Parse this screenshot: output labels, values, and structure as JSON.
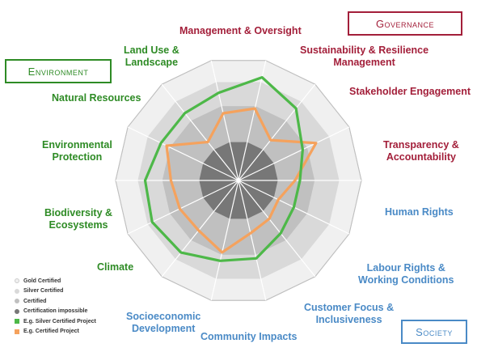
{
  "chart_data": {
    "type": "radar",
    "axes": [
      "Management & Oversight",
      "Sustainability & Resilience Management",
      "Stakeholder Engagement",
      "Transparency & Accountability",
      "Human Rights",
      "Labour Rights & Working Conditions",
      "Customer Focus & Inclusiveness",
      "Community Impacts",
      "Socioeconomic Development",
      "Climate",
      "Biodiversity & Ecosystems",
      "Environmental Protection",
      "Natural Resources",
      "Land Use & Landscape"
    ],
    "bands": [
      {
        "name": "Gold Certified",
        "color": "#f0f0f0",
        "radius": 1.0
      },
      {
        "name": "Silver Certified",
        "color": "#d9d9d9",
        "radius": 0.82
      },
      {
        "name": "Certified",
        "color": "#c0c0c0",
        "radius": 0.62
      },
      {
        "name": "Certification impossible",
        "color": "#777777",
        "radius": 0.32
      }
    ],
    "series": [
      {
        "name": "E.g. Silver Certified Project",
        "color": "#4db848",
        "values": [
          0.86,
          0.75,
          0.58,
          0.5,
          0.5,
          0.55,
          0.65,
          0.67,
          0.75,
          0.78,
          0.76,
          0.7,
          0.7,
          0.73
        ]
      },
      {
        "name": "E.g. Certified Project",
        "color": "#f5a25d",
        "values": [
          0.6,
          0.42,
          0.7,
          0.46,
          0.36,
          0.4,
          0.44,
          0.6,
          0.52,
          0.53,
          0.55,
          0.65,
          0.4,
          0.56
        ]
      }
    ]
  },
  "categories": {
    "governance": "Governance",
    "environment": "Environment",
    "society": "Society"
  },
  "labels": {
    "mgmt": [
      "Management & Oversight"
    ],
    "sust": [
      "Sustainability & Resilience",
      "Management"
    ],
    "stake": [
      "Stakeholder Engagement"
    ],
    "transp": [
      "Transparency &",
      "Accountability"
    ],
    "human": [
      "Human Rights"
    ],
    "labour": [
      "Labour Rights &",
      "Working Conditions"
    ],
    "customer": [
      "Customer Focus &",
      "Inclusiveness"
    ],
    "community": [
      "Community Impacts"
    ],
    "socio": [
      "Socioeconomic",
      "Development"
    ],
    "climate": [
      "Climate"
    ],
    "bio": [
      "Biodiversity &",
      "Ecosystems"
    ],
    "envprot": [
      "Environmental",
      "Protection"
    ],
    "natural": [
      "Natural Resources"
    ],
    "landuse": [
      "Land Use &",
      "Landscape"
    ]
  },
  "legend": [
    {
      "label": "Gold Certified",
      "color": "#f0f0f0",
      "shape": "dot"
    },
    {
      "label": "Silver Certified",
      "color": "#d9d9d9",
      "shape": "dot"
    },
    {
      "label": "Certified",
      "color": "#c0c0c0",
      "shape": "dot"
    },
    {
      "label": "Certification impossible",
      "color": "#777777",
      "shape": "dot"
    },
    {
      "label": "E.g. Silver Certified Project",
      "color": "#4db848",
      "shape": "square"
    },
    {
      "label": "E.g. Certified Project",
      "color": "#f5a25d",
      "shape": "square"
    }
  ]
}
